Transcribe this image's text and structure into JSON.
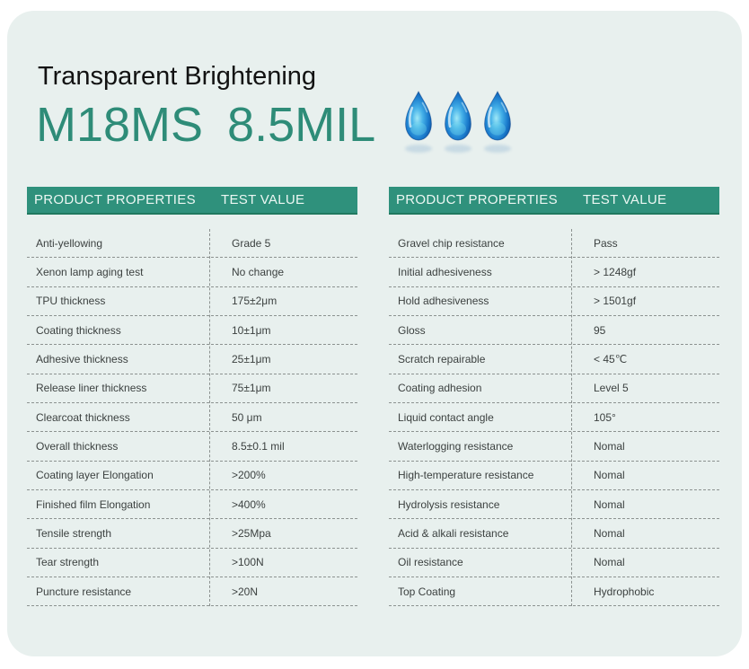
{
  "colors": {
    "card_bg": "#e8f0ee",
    "header_green": "#2f917c",
    "accent_teal": "#2e8c78",
    "dash_color": "#8c9290",
    "droplet_blue": "#1b7ccd"
  },
  "header": {
    "subtitle": "Transparent Brightening",
    "model": "M18MS",
    "size": "8.5MIL",
    "droplet_count": 3
  },
  "tables": [
    {
      "headers": {
        "property": "PRODUCT PROPERTIES",
        "value": "TEST VALUE"
      },
      "rows": [
        {
          "property": "Anti-yellowing",
          "value": "Grade 5"
        },
        {
          "property": "Xenon lamp aging test",
          "value": "No change"
        },
        {
          "property": "TPU thickness",
          "value": "175±2μm"
        },
        {
          "property": "Coating thickness",
          "value": "10±1μm"
        },
        {
          "property": "Adhesive thickness",
          "value": "25±1μm"
        },
        {
          "property": "Release liner thickness",
          "value": "75±1μm"
        },
        {
          "property": "Clearcoat thickness",
          "value": "50 μm"
        },
        {
          "property": "Overall thickness",
          "value": "8.5±0.1 mil"
        },
        {
          "property": "Coating layer Elongation",
          "value": ">200%"
        },
        {
          "property": "Finished film Elongation",
          "value": ">400%"
        },
        {
          "property": "Tensile strength",
          "value": ">25Mpa"
        },
        {
          "property": "Tear strength",
          "value": ">100N"
        },
        {
          "property": "Puncture resistance",
          "value": ">20N"
        }
      ]
    },
    {
      "headers": {
        "property": "PRODUCT PROPERTIES",
        "value": "TEST VALUE"
      },
      "rows": [
        {
          "property": "Gravel chip resistance",
          "value": "Pass"
        },
        {
          "property": "Initial adhesiveness",
          "value": "> 1248gf"
        },
        {
          "property": "Hold adhesiveness",
          "value": "> 1501gf"
        },
        {
          "property": "Gloss",
          "value": "95"
        },
        {
          "property": "Scratch repairable",
          "value": "< 45℃"
        },
        {
          "property": "Coating adhesion",
          "value": "Level 5"
        },
        {
          "property": "Liquid contact angle",
          "value": "105°"
        },
        {
          "property": "Waterlogging resistance",
          "value": "Nomal"
        },
        {
          "property": "High-temperature resistance",
          "value": "Nomal"
        },
        {
          "property": "Hydrolysis resistance",
          "value": "Nomal"
        },
        {
          "property": "Acid & alkali resistance",
          "value": "Nomal"
        },
        {
          "property": "Oil resistance",
          "value": "Nomal"
        },
        {
          "property": "Top Coating",
          "value": "Hydrophobic"
        }
      ]
    }
  ]
}
